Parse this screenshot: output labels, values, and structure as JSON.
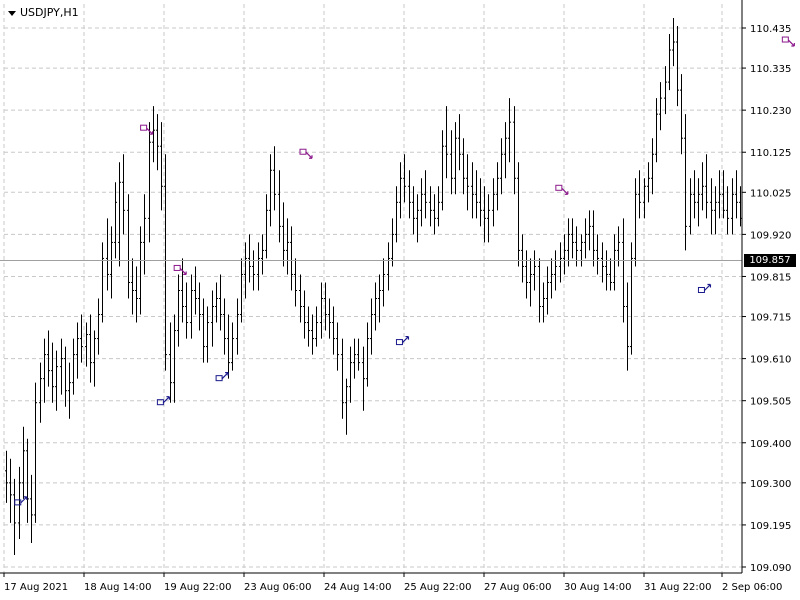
{
  "window": {
    "symbol": "USDJPY,H1"
  },
  "chart_data": {
    "type": "candlestick",
    "symbol": "USDJPY",
    "timeframe": "H1",
    "ylim": [
      109.09,
      110.5
    ],
    "y_ticks": [
      "110.435",
      "110.335",
      "110.230",
      "110.125",
      "110.025",
      "109.920",
      "109.815",
      "109.715",
      "109.610",
      "109.505",
      "109.400",
      "109.300",
      "109.195",
      "109.090"
    ],
    "x_ticks": [
      "17 Aug 2021",
      "18 Aug 14:00",
      "19 Aug 22:00",
      "23 Aug 06:00",
      "24 Aug 14:00",
      "25 Aug 22:00",
      "27 Aug 06:00",
      "30 Aug 14:00",
      "31 Aug 22:00",
      "2 Sep 06:00"
    ],
    "current_price": "109.857",
    "grid": true,
    "bars": [
      [
        109.33,
        109.38,
        109.25,
        109.3
      ],
      [
        109.3,
        109.36,
        109.2,
        109.27
      ],
      [
        109.27,
        109.31,
        109.12,
        109.2
      ],
      [
        109.2,
        109.34,
        109.16,
        109.3
      ],
      [
        109.3,
        109.44,
        109.26,
        109.38
      ],
      [
        109.38,
        109.41,
        109.2,
        109.26
      ],
      [
        109.26,
        109.32,
        109.15,
        109.22
      ],
      [
        109.22,
        109.55,
        109.2,
        109.5
      ],
      [
        109.5,
        109.6,
        109.45,
        109.56
      ],
      [
        109.56,
        109.66,
        109.5,
        109.62
      ],
      [
        109.62,
        109.68,
        109.54,
        109.58
      ],
      [
        109.58,
        109.65,
        109.5,
        109.54
      ],
      [
        109.54,
        109.63,
        109.48,
        109.59
      ],
      [
        109.59,
        109.66,
        109.52,
        109.61
      ],
      [
        109.61,
        109.64,
        109.49,
        109.53
      ],
      [
        109.53,
        109.6,
        109.46,
        109.55
      ],
      [
        109.55,
        109.66,
        109.52,
        109.62
      ],
      [
        109.62,
        109.7,
        109.56,
        109.66
      ],
      [
        109.66,
        109.72,
        109.6,
        109.64
      ],
      [
        109.64,
        109.7,
        109.59,
        109.67
      ],
      [
        109.67,
        109.72,
        109.55,
        109.6
      ],
      [
        109.6,
        109.68,
        109.54,
        109.66
      ],
      [
        109.66,
        109.76,
        109.62,
        109.72
      ],
      [
        109.72,
        109.9,
        109.7,
        109.86
      ],
      [
        109.86,
        109.96,
        109.78,
        109.82
      ],
      [
        109.82,
        109.94,
        109.76,
        109.9
      ],
      [
        109.9,
        110.05,
        109.86,
        110.0
      ],
      [
        109.9,
        110.1,
        109.84,
        110.05
      ],
      [
        110.05,
        110.12,
        109.92,
        109.98
      ],
      [
        109.98,
        110.02,
        109.76,
        109.8
      ],
      [
        109.8,
        109.86,
        109.72,
        109.78
      ],
      [
        109.78,
        109.84,
        109.7,
        109.76
      ],
      [
        109.76,
        109.94,
        109.72,
        109.9
      ],
      [
        109.9,
        110.02,
        109.82,
        109.96
      ],
      [
        109.96,
        110.2,
        109.9,
        110.15
      ],
      [
        110.15,
        110.24,
        110.1,
        110.18
      ],
      [
        110.18,
        110.22,
        110.08,
        110.14
      ],
      [
        110.14,
        110.2,
        109.98,
        110.04
      ],
      [
        110.04,
        110.12,
        109.58,
        109.62
      ],
      [
        109.62,
        109.7,
        109.5,
        109.55
      ],
      [
        109.55,
        109.72,
        109.5,
        109.68
      ],
      [
        109.68,
        109.82,
        109.64,
        109.78
      ],
      [
        109.78,
        109.86,
        109.7,
        109.74
      ],
      [
        109.74,
        109.8,
        109.66,
        109.7
      ],
      [
        109.7,
        109.82,
        109.66,
        109.78
      ],
      [
        109.78,
        109.84,
        109.72,
        109.76
      ],
      [
        109.76,
        109.8,
        109.68,
        109.72
      ],
      [
        109.72,
        109.76,
        109.6,
        109.64
      ],
      [
        109.64,
        109.74,
        109.6,
        109.7
      ],
      [
        109.7,
        109.78,
        109.64,
        109.74
      ],
      [
        109.74,
        109.8,
        109.7,
        109.76
      ],
      [
        109.76,
        109.82,
        109.68,
        109.72
      ],
      [
        109.72,
        109.76,
        109.62,
        109.66
      ],
      [
        109.66,
        109.72,
        109.56,
        109.6
      ],
      [
        109.6,
        109.7,
        109.58,
        109.66
      ],
      [
        109.66,
        109.76,
        109.62,
        109.72
      ],
      [
        109.72,
        109.86,
        109.7,
        109.82
      ],
      [
        109.82,
        109.9,
        109.76,
        109.86
      ],
      [
        109.86,
        109.92,
        109.8,
        109.84
      ],
      [
        109.84,
        109.88,
        109.78,
        109.82
      ],
      [
        109.82,
        109.9,
        109.78,
        109.86
      ],
      [
        109.86,
        109.92,
        109.82,
        109.88
      ],
      [
        109.88,
        110.02,
        109.86,
        109.98
      ],
      [
        109.98,
        110.12,
        109.94,
        110.08
      ],
      [
        110.08,
        110.14,
        109.98,
        110.02
      ],
      [
        110.02,
        110.08,
        109.9,
        109.94
      ],
      [
        109.94,
        110.0,
        109.84,
        109.88
      ],
      [
        109.88,
        109.96,
        109.82,
        109.9
      ],
      [
        109.9,
        109.94,
        109.78,
        109.82
      ],
      [
        109.82,
        109.86,
        109.74,
        109.78
      ],
      [
        109.78,
        109.82,
        109.7,
        109.74
      ],
      [
        109.74,
        109.78,
        109.66,
        109.7
      ],
      [
        109.7,
        109.74,
        109.64,
        109.68
      ],
      [
        109.68,
        109.72,
        109.62,
        109.66
      ],
      [
        109.66,
        109.74,
        109.64,
        109.7
      ],
      [
        109.7,
        109.8,
        109.66,
        109.76
      ],
      [
        109.76,
        109.8,
        109.68,
        109.72
      ],
      [
        109.72,
        109.76,
        109.66,
        109.7
      ],
      [
        109.7,
        109.74,
        109.62,
        109.66
      ],
      [
        109.66,
        109.7,
        109.58,
        109.62
      ],
      [
        109.62,
        109.66,
        109.46,
        109.5
      ],
      [
        109.5,
        109.56,
        109.42,
        109.54
      ],
      [
        109.54,
        109.64,
        109.5,
        109.6
      ],
      [
        109.6,
        109.66,
        109.56,
        109.62
      ],
      [
        109.62,
        109.66,
        109.58,
        109.6
      ],
      [
        109.6,
        109.64,
        109.48,
        109.56
      ],
      [
        109.56,
        109.7,
        109.54,
        109.66
      ],
      [
        109.66,
        109.76,
        109.62,
        109.72
      ],
      [
        109.72,
        109.8,
        109.68,
        109.76
      ],
      [
        109.76,
        109.82,
        109.7,
        109.78
      ],
      [
        109.78,
        109.86,
        109.74,
        109.82
      ],
      [
        109.82,
        109.9,
        109.78,
        109.86
      ],
      [
        109.86,
        109.96,
        109.84,
        109.92
      ],
      [
        109.92,
        110.04,
        109.9,
        110.0
      ],
      [
        110.0,
        110.1,
        109.96,
        110.06
      ],
      [
        110.06,
        110.12,
        110.0,
        110.04
      ],
      [
        110.04,
        110.08,
        109.96,
        110.0
      ],
      [
        110.0,
        110.04,
        109.92,
        109.96
      ],
      [
        109.96,
        110.02,
        109.9,
        109.98
      ],
      [
        109.98,
        110.06,
        109.94,
        110.02
      ],
      [
        110.02,
        110.08,
        109.96,
        110.0
      ],
      [
        110.0,
        110.04,
        109.94,
        109.98
      ],
      [
        109.98,
        110.02,
        109.92,
        109.96
      ],
      [
        109.96,
        110.04,
        109.94,
        110.0
      ],
      [
        110.0,
        110.18,
        109.98,
        110.14
      ],
      [
        110.14,
        110.24,
        110.06,
        110.12
      ],
      [
        110.12,
        110.18,
        110.02,
        110.06
      ],
      [
        110.06,
        110.2,
        110.02,
        110.16
      ],
      [
        110.16,
        110.22,
        110.08,
        110.12
      ],
      [
        110.12,
        110.16,
        110.02,
        110.06
      ],
      [
        110.06,
        110.12,
        109.98,
        110.04
      ],
      [
        110.04,
        110.1,
        109.96,
        110.02
      ],
      [
        110.02,
        110.08,
        109.96,
        110.0
      ],
      [
        110.0,
        110.06,
        109.94,
        109.98
      ],
      [
        109.98,
        110.04,
        109.9,
        109.96
      ],
      [
        109.96,
        110.02,
        109.9,
        109.98
      ],
      [
        109.98,
        110.06,
        109.94,
        110.02
      ],
      [
        110.02,
        110.1,
        109.98,
        110.06
      ],
      [
        110.06,
        110.16,
        110.02,
        110.12
      ],
      [
        110.12,
        110.2,
        110.06,
        110.16
      ],
      [
        110.16,
        110.26,
        110.1,
        110.2
      ],
      [
        110.2,
        110.24,
        110.02,
        110.06
      ],
      [
        110.06,
        110.1,
        109.84,
        109.88
      ],
      [
        109.88,
        109.92,
        109.8,
        109.84
      ],
      [
        109.84,
        109.88,
        109.76,
        109.8
      ],
      [
        109.8,
        109.86,
        109.74,
        109.82
      ],
      [
        109.82,
        109.88,
        109.78,
        109.84
      ],
      [
        109.84,
        109.86,
        109.7,
        109.74
      ],
      [
        109.74,
        109.8,
        109.7,
        109.76
      ],
      [
        109.76,
        109.84,
        109.72,
        109.8
      ],
      [
        109.8,
        109.86,
        109.76,
        109.82
      ],
      [
        109.82,
        109.88,
        109.78,
        109.84
      ],
      [
        109.84,
        109.9,
        109.8,
        109.86
      ],
      [
        109.86,
        109.92,
        109.82,
        109.88
      ],
      [
        109.88,
        109.96,
        109.84,
        109.92
      ],
      [
        109.92,
        109.96,
        109.86,
        109.9
      ],
      [
        109.9,
        109.94,
        109.84,
        109.88
      ],
      [
        109.88,
        109.92,
        109.84,
        109.9
      ],
      [
        109.9,
        109.96,
        109.86,
        109.92
      ],
      [
        109.92,
        109.98,
        109.88,
        109.94
      ],
      [
        109.94,
        109.98,
        109.84,
        109.88
      ],
      [
        109.88,
        109.92,
        109.82,
        109.86
      ],
      [
        109.86,
        109.9,
        109.8,
        109.84
      ],
      [
        109.84,
        109.88,
        109.78,
        109.82
      ],
      [
        109.82,
        109.86,
        109.78,
        109.8
      ],
      [
        109.8,
        109.92,
        109.78,
        109.88
      ],
      [
        109.88,
        109.94,
        109.84,
        109.9
      ],
      [
        109.9,
        109.96,
        109.7,
        109.74
      ],
      [
        109.74,
        109.8,
        109.58,
        109.64
      ],
      [
        109.64,
        109.9,
        109.62,
        109.86
      ],
      [
        109.86,
        110.06,
        109.84,
        110.02
      ],
      [
        110.02,
        110.08,
        109.96,
        110.0
      ],
      [
        110.0,
        110.06,
        109.96,
        110.04
      ],
      [
        110.04,
        110.1,
        110.0,
        110.06
      ],
      [
        110.06,
        110.16,
        110.02,
        110.12
      ],
      [
        110.12,
        110.26,
        110.1,
        110.22
      ],
      [
        110.22,
        110.3,
        110.18,
        110.26
      ],
      [
        110.26,
        110.34,
        110.22,
        110.3
      ],
      [
        110.3,
        110.42,
        110.28,
        110.38
      ],
      [
        110.38,
        110.46,
        110.34,
        110.4
      ],
      [
        110.4,
        110.44,
        110.24,
        110.28
      ],
      [
        110.28,
        110.32,
        110.12,
        110.16
      ],
      [
        110.16,
        110.22,
        109.88,
        109.94
      ],
      [
        109.94,
        110.06,
        109.92,
        110.02
      ],
      [
        110.02,
        110.08,
        109.96,
        110.0
      ],
      [
        110.0,
        110.06,
        109.94,
        110.02
      ],
      [
        110.02,
        110.1,
        109.98,
        110.04
      ],
      [
        110.04,
        110.12,
        109.96,
        110.0
      ],
      [
        110.0,
        110.06,
        109.92,
        109.98
      ],
      [
        109.98,
        110.04,
        109.92,
        110.0
      ],
      [
        110.0,
        110.08,
        109.96,
        110.02
      ],
      [
        110.02,
        110.08,
        109.96,
        109.98
      ],
      [
        109.98,
        110.04,
        109.92,
        109.96
      ],
      [
        109.96,
        110.06,
        109.92,
        110.02
      ],
      [
        110.02,
        110.08,
        109.96,
        110.0
      ],
      [
        110.0,
        110.04,
        109.94,
        109.96
      ]
    ],
    "signals": [
      {
        "type": "buy",
        "bar": 4,
        "price": 109.25
      },
      {
        "type": "sell",
        "bar": 34,
        "price": 110.18
      },
      {
        "type": "buy",
        "bar": 38,
        "price": 109.5
      },
      {
        "type": "sell",
        "bar": 42,
        "price": 109.83
      },
      {
        "type": "buy",
        "bar": 52,
        "price": 109.56
      },
      {
        "type": "sell",
        "bar": 72,
        "price": 110.12
      },
      {
        "type": "buy",
        "bar": 95,
        "price": 109.65
      },
      {
        "type": "sell",
        "bar": 133,
        "price": 110.03
      },
      {
        "type": "buy",
        "bar": 167,
        "price": 109.78
      },
      {
        "type": "sell",
        "bar": 187,
        "price": 110.4
      }
    ],
    "colors": {
      "background": "#ffffff",
      "bars": "#000000",
      "grid": "#c8c8c8",
      "current_price_line": "#a0a0a0",
      "buy_signal": "#1a1a8c",
      "sell_signal": "#8c1a8c"
    }
  }
}
